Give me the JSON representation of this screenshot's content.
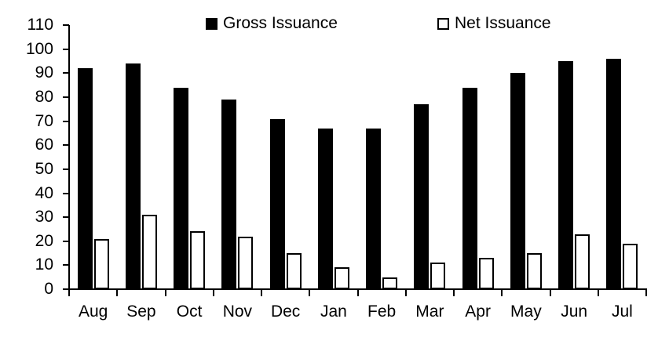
{
  "chart_data": {
    "type": "bar",
    "title": "",
    "xlabel": "",
    "ylabel": "",
    "categories": [
      "Aug",
      "Sep",
      "Oct",
      "Nov",
      "Dec",
      "Jan",
      "Feb",
      "Mar",
      "Apr",
      "May",
      "Jun",
      "Jul"
    ],
    "series": [
      {
        "name": "Gross Issuance",
        "values": [
          92,
          94,
          84,
          79,
          71,
          67,
          67,
          77,
          84,
          90,
          95,
          96
        ]
      },
      {
        "name": "Net Issuance",
        "values": [
          21,
          31,
          24,
          22,
          15,
          9,
          5,
          11,
          13,
          15,
          23,
          19
        ]
      }
    ],
    "ylim": [
      0,
      110
    ],
    "ytick_step": 10,
    "ytick_labels": [
      "0",
      "10",
      "20",
      "30",
      "40",
      "50",
      "60",
      "70",
      "80",
      "90",
      "100",
      "110"
    ],
    "grid": false,
    "legend_position": "top"
  },
  "legend": {
    "gross_label": "Gross Issuance",
    "net_label": "Net Issuance"
  },
  "colors": {
    "gross_fill": "#000000",
    "net_fill": "#ffffff",
    "net_outline": "#000000",
    "axis": "#000000",
    "background": "#ffffff",
    "text": "#000000"
  }
}
